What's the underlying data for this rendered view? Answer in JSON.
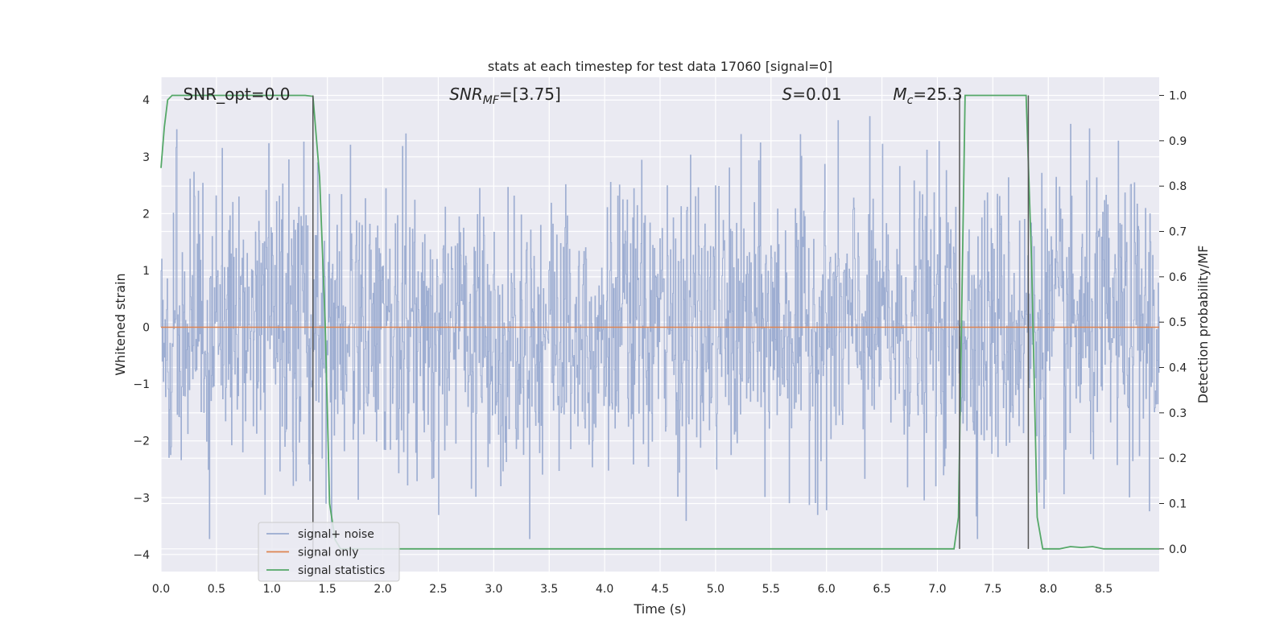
{
  "chart_data": {
    "type": "line",
    "title": "stats at each timestep for test data 17060 [signal=0]",
    "xlabel": "Time (s)",
    "ylabel": "Whitened strain",
    "y2label": "Detection probability/MF",
    "xlim": [
      0.0,
      9.0
    ],
    "ylim": [
      -4.3,
      4.4
    ],
    "y2lim": [
      -0.05,
      1.04
    ],
    "xticks": [
      0.0,
      0.5,
      1.0,
      1.5,
      2.0,
      2.5,
      3.0,
      3.5,
      4.0,
      4.5,
      5.0,
      5.5,
      6.0,
      6.5,
      7.0,
      7.5,
      8.0,
      8.5
    ],
    "xtick_labels": [
      "0.0",
      "0.5",
      "1.0",
      "1.5",
      "2.0",
      "2.5",
      "3.0",
      "3.5",
      "4.0",
      "4.5",
      "5.0",
      "5.5",
      "6.0",
      "6.5",
      "7.0",
      "7.5",
      "8.0",
      "8.5"
    ],
    "yticks": [
      -4,
      -3,
      -2,
      -1,
      0,
      1,
      2,
      3,
      4
    ],
    "ytick_labels": [
      "−4",
      "−3",
      "−2",
      "−1",
      "0",
      "1",
      "2",
      "3",
      "4"
    ],
    "y2ticks": [
      0.0,
      0.1,
      0.2,
      0.3,
      0.4,
      0.5,
      0.6,
      0.7,
      0.8,
      0.9,
      1.0
    ],
    "y2tick_labels": [
      "0.0",
      "0.1",
      "0.2",
      "0.3",
      "0.4",
      "0.5",
      "0.6",
      "0.7",
      "0.8",
      "0.9",
      "1.0"
    ],
    "grid": true,
    "legend_position": "lower-left",
    "annotations": [
      {
        "name": "snr-opt-annotation",
        "parts": [
          {
            "t": "SNR_opt=0.0",
            "italic": false
          }
        ],
        "x": 0.2
      },
      {
        "name": "snr-mf-annotation",
        "parts": [
          {
            "t": "SNR",
            "italic": true
          },
          {
            "t": "MF",
            "italic": true,
            "sub": true
          },
          {
            "t": "=[3.75]",
            "italic": false
          }
        ],
        "x": 2.6
      },
      {
        "name": "s-annotation",
        "parts": [
          {
            "t": "S",
            "italic": true
          },
          {
            "t": "=0.01",
            "italic": false
          }
        ],
        "x": 5.6
      },
      {
        "name": "mc-annotation",
        "parts": [
          {
            "t": "M",
            "italic": true
          },
          {
            "t": "c",
            "italic": true,
            "sub": true
          },
          {
            "t": "=25.3",
            "italic": false
          }
        ],
        "x": 6.6
      }
    ],
    "series": [
      {
        "name": "signal+ noise",
        "color": "#9aabd0",
        "kind": "noise",
        "duration_s": 9.0,
        "amplitude_std": 1.0,
        "y_range": [
          -3.72,
          3.83
        ]
      },
      {
        "name": "signal only",
        "color": "#dd8452",
        "kind": "line",
        "x": [
          0.0,
          9.0
        ],
        "y": [
          0.0,
          0.0
        ]
      },
      {
        "name": "signal statistics",
        "color": "#55a868",
        "kind": "line",
        "axis": "right",
        "x": [
          0.0,
          0.03,
          0.06,
          0.1,
          0.2,
          1.3,
          1.37,
          1.43,
          1.48,
          1.52,
          1.57,
          1.62,
          1.67,
          1.75,
          7.15,
          7.19,
          7.25,
          7.8,
          7.85,
          7.9,
          7.95,
          8.0,
          8.1,
          8.2,
          8.3,
          8.4,
          8.5,
          8.6,
          9.0
        ],
        "y": [
          0.84,
          0.93,
          0.99,
          1.0,
          1.0,
          1.0,
          0.998,
          0.82,
          0.5,
          0.1,
          0.02,
          0.0,
          0.0,
          0.0,
          0.0,
          0.07,
          1.0,
          1.0,
          0.63,
          0.07,
          0.0,
          0.0,
          0.0,
          0.005,
          0.003,
          0.005,
          0.0,
          0.0,
          0.0
        ]
      }
    ],
    "vertical_markers": [
      {
        "x": 1.37,
        "from": 0.0,
        "to": 1.0
      },
      {
        "x": 7.2,
        "from": 0.0,
        "to": 1.0
      },
      {
        "x": 7.82,
        "from": 0.0,
        "to": 1.0
      }
    ]
  }
}
